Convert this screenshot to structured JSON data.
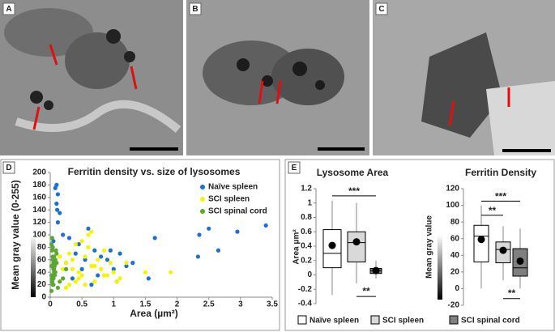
{
  "panels": [
    {
      "label": "A"
    },
    {
      "label": "B"
    },
    {
      "label": "C"
    },
    {
      "label": "D"
    },
    {
      "label": "E"
    }
  ],
  "legend_e": [
    {
      "name": "Naïve spleen",
      "color": "#ffffff"
    },
    {
      "name": "SCI spleen",
      "color": "#d9d9d9"
    },
    {
      "name": "SCI spinal cord",
      "color": "#7f7f7f"
    }
  ],
  "chart_data": [
    {
      "type": "scatter",
      "title": "Ferritin density vs. size of lysosomes",
      "x_label": "Area (µm²)",
      "y_label": "Mean gray value (0-255)",
      "xlim": [
        0,
        3.5
      ],
      "ylim": [
        0,
        200
      ],
      "xticks": [
        0,
        0.5,
        1,
        1.5,
        2,
        2.5,
        3,
        3.5
      ],
      "yticks": [
        0,
        20,
        40,
        60,
        80,
        100,
        120,
        140,
        160,
        180,
        200
      ],
      "series": [
        {
          "name": "Naïve spleen",
          "color": "#1f6fd1",
          "x": [
            0.08,
            0.1,
            0.12,
            0.1,
            0.11,
            0.15,
            0.12,
            0.2,
            0.05,
            0.3,
            0.45,
            0.55,
            0.6,
            0.7,
            0.8,
            0.9,
            1.0,
            1.1,
            1.2,
            1.3,
            1.55,
            1.65,
            2.35,
            2.5,
            2.65,
            2.95,
            3.4,
            2.33,
            0.35,
            0.5,
            0.75,
            0.95,
            1.05,
            0.25,
            0.4,
            0.65
          ],
          "values": [
            175,
            180,
            165,
            150,
            140,
            135,
            120,
            100,
            90,
            95,
            85,
            60,
            110,
            75,
            65,
            60,
            45,
            70,
            50,
            55,
            30,
            95,
            100,
            110,
            75,
            105,
            115,
            65,
            30,
            45,
            35,
            75,
            25,
            55,
            70,
            20
          ]
        },
        {
          "name": "SCI spleen",
          "color": "#f5f500",
          "x": [
            0.2,
            0.25,
            0.3,
            0.35,
            0.4,
            0.45,
            0.5,
            0.55,
            0.6,
            0.65,
            0.7,
            0.75,
            0.8,
            0.85,
            0.9,
            0.95,
            1.0,
            1.1,
            1.2,
            1.5,
            1.9,
            0.3,
            0.4,
            0.5,
            0.6,
            0.2,
            0.25,
            0.35,
            0.45,
            0.7,
            0.15,
            0.55,
            0.85,
            1.05,
            0.65
          ],
          "values": [
            30,
            55,
            70,
            45,
            85,
            40,
            35,
            65,
            100,
            50,
            25,
            60,
            45,
            75,
            35,
            55,
            40,
            30,
            55,
            40,
            40,
            20,
            25,
            90,
            80,
            45,
            15,
            60,
            30,
            50,
            65,
            20,
            35,
            25,
            105
          ]
        },
        {
          "name": "SCI spinal cord",
          "color": "#5aa832",
          "x": [
            0.02,
            0.03,
            0.04,
            0.05,
            0.06,
            0.02,
            0.03,
            0.04,
            0.05,
            0.06,
            0.07,
            0.08,
            0.1,
            0.12,
            0.15,
            0.02,
            0.03,
            0.05,
            0.04,
            0.06,
            0.08,
            0.1,
            0.03,
            0.02,
            0.05,
            0.07,
            0.04,
            0.2,
            0.25,
            0.09
          ],
          "values": [
            85,
            75,
            65,
            55,
            45,
            35,
            25,
            20,
            30,
            40,
            50,
            60,
            70,
            15,
            25,
            10,
            30,
            45,
            80,
            65,
            40,
            55,
            95,
            50,
            20,
            35,
            60,
            30,
            45,
            75
          ]
        }
      ]
    },
    {
      "type": "box",
      "title": "Lysosome Area",
      "y_label": "Area μm²",
      "ylim": [
        -0.4,
        1.2
      ],
      "yticks": [
        -0.4,
        -0.2,
        0,
        0.2,
        0.4,
        0.6,
        0.8,
        1,
        1.2
      ],
      "boxes": [
        {
          "whislo": -0.28,
          "q1": 0.1,
          "med": 0.3,
          "q3": 0.63,
          "whishi": 1.03,
          "mean": 0.41
        },
        {
          "whislo": -0.12,
          "q1": 0.18,
          "med": 0.45,
          "q3": 0.6,
          "whishi": 1.0,
          "mean": 0.46
        },
        {
          "whislo": -0.05,
          "q1": 0.02,
          "med": 0.06,
          "q3": 0.09,
          "whishi": 0.2,
          "mean": 0.06
        }
      ],
      "annotations": [
        "***",
        "**"
      ]
    },
    {
      "type": "box",
      "title": "Ferritin Density",
      "y_label": "Mean gray value",
      "ylim": [
        -20,
        120
      ],
      "yticks": [
        -20,
        0,
        20,
        40,
        60,
        80,
        100,
        120
      ],
      "boxes": [
        {
          "whislo": 0,
          "q1": 32,
          "med": 63,
          "q3": 76,
          "whishi": 100,
          "mean": 59
        },
        {
          "whislo": 10,
          "q1": 31,
          "med": 47,
          "q3": 56,
          "whishi": 75,
          "mean": 46
        },
        {
          "whislo": 0,
          "q1": 15,
          "med": 25,
          "q3": 48,
          "whishi": 72,
          "mean": 33
        }
      ],
      "annotations": [
        "***",
        "**",
        "**"
      ]
    }
  ]
}
